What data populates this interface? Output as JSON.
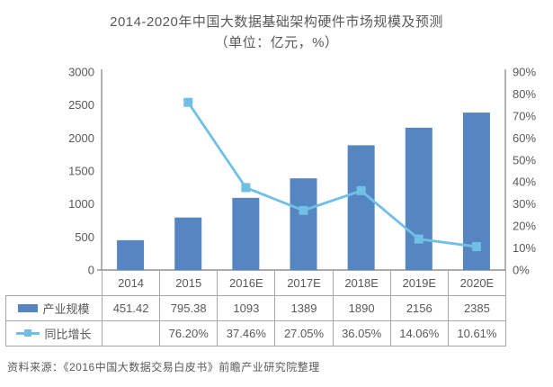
{
  "title": "2014-2020年中国大数据基础架构硬件市场规模及预测",
  "subtitle": "（单位：亿元，%）",
  "source": "资料来源：《2016中国大数据交易白皮书》前瞻产业研究院整理",
  "colors": {
    "bar": "#5586C1",
    "line": "#70BFE5",
    "axis_line": "#808080",
    "axis_text": "#595959",
    "table_border": "#A6A6A6",
    "text": "#595959"
  },
  "chart_data": {
    "type": "bar+line combo",
    "categories": [
      "2014",
      "2015",
      "2016E",
      "2017E",
      "2018E",
      "2019E",
      "2020E"
    ],
    "series": [
      {
        "name": "产业规模",
        "type": "bar",
        "axis": "left",
        "values": [
          451.42,
          795.38,
          1093,
          1389,
          1890,
          2156,
          2385
        ],
        "labels": [
          "451.42",
          "795.38",
          "1093",
          "1389",
          "1890",
          "2156",
          "2385"
        ]
      },
      {
        "name": "同比增长",
        "type": "line",
        "axis": "right",
        "values": [
          null,
          76.2,
          37.46,
          27.05,
          36.05,
          14.06,
          10.61
        ],
        "labels": [
          "",
          "76.20%",
          "37.46%",
          "27.05%",
          "36.05%",
          "14.06%",
          "10.61%"
        ]
      }
    ],
    "left_axis": {
      "min": 0,
      "max": 3000,
      "step": 500,
      "ticks": [
        "3000",
        "2500",
        "2000",
        "1500",
        "1000",
        "500",
        "0"
      ]
    },
    "right_axis": {
      "min": 0,
      "max": 90,
      "step": 10,
      "ticks": [
        "90%",
        "80%",
        "70%",
        "60%",
        "50%",
        "40%",
        "30%",
        "20%",
        "10%",
        "0%"
      ]
    },
    "grid": false,
    "legend_position": "table-left-column"
  }
}
